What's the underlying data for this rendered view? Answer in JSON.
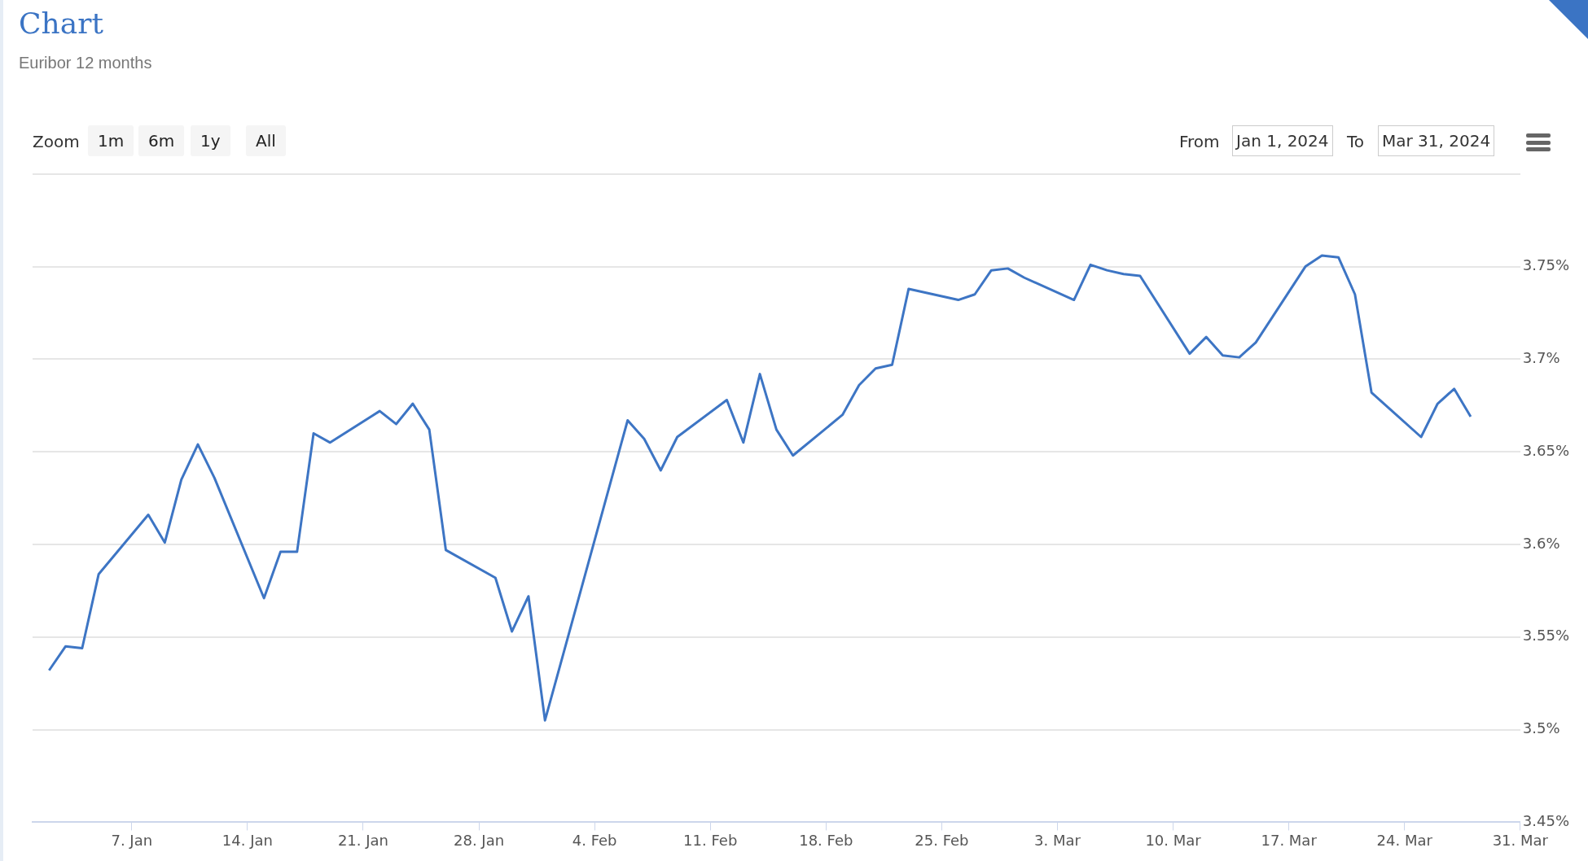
{
  "chart_data": {
    "type": "line",
    "title": "Chart",
    "subtitle": "Euribor 12 months",
    "annotations": [
      "Zoom",
      "1m",
      "6m",
      "1y",
      "All",
      "From",
      "Jan 1, 2024",
      "To",
      "Mar 31, 2024"
    ],
    "x": [
      "2024-01-02",
      "2024-01-03",
      "2024-01-04",
      "2024-01-05",
      "2024-01-08",
      "2024-01-09",
      "2024-01-10",
      "2024-01-11",
      "2024-01-12",
      "2024-01-15",
      "2024-01-16",
      "2024-01-17",
      "2024-01-18",
      "2024-01-19",
      "2024-01-22",
      "2024-01-23",
      "2024-01-24",
      "2024-01-25",
      "2024-01-26",
      "2024-01-29",
      "2024-01-30",
      "2024-01-31",
      "2024-02-01",
      "2024-02-06",
      "2024-02-07",
      "2024-02-08",
      "2024-02-09",
      "2024-02-12",
      "2024-02-13",
      "2024-02-14",
      "2024-02-15",
      "2024-02-16",
      "2024-02-19",
      "2024-02-20",
      "2024-02-21",
      "2024-02-22",
      "2024-02-23",
      "2024-02-26",
      "2024-02-27",
      "2024-02-28",
      "2024-02-29",
      "2024-03-01",
      "2024-03-04",
      "2024-03-05",
      "2024-03-06",
      "2024-03-07",
      "2024-03-08",
      "2024-03-11",
      "2024-03-12",
      "2024-03-13",
      "2024-03-14",
      "2024-03-15",
      "2024-03-18",
      "2024-03-19",
      "2024-03-20",
      "2024-03-21",
      "2024-03-22",
      "2024-03-25",
      "2024-03-26",
      "2024-03-27",
      "2024-03-28"
    ],
    "series": [
      {
        "color": "#3d75c4",
        "values": [
          3.532,
          3.545,
          3.544,
          3.584,
          3.616,
          3.601,
          3.635,
          3.654,
          3.636,
          3.571,
          3.596,
          3.596,
          3.66,
          3.655,
          3.672,
          3.665,
          3.676,
          3.662,
          3.597,
          3.582,
          3.553,
          3.572,
          3.505,
          3.667,
          3.657,
          3.64,
          3.658,
          3.678,
          3.655,
          3.692,
          3.662,
          3.648,
          3.67,
          3.686,
          3.695,
          3.697,
          3.738,
          3.732,
          3.735,
          3.748,
          3.749,
          3.744,
          3.732,
          3.751,
          3.748,
          3.746,
          3.745,
          3.703,
          3.712,
          3.702,
          3.701,
          3.709,
          3.75,
          3.756,
          3.755,
          3.735,
          3.682,
          3.658,
          3.676,
          3.684,
          3.669
        ]
      }
    ],
    "xlim": [
      "2024-01-01",
      "2024-03-31"
    ],
    "xticks": [
      {
        "value": "2024-01-07",
        "label": "7. Jan"
      },
      {
        "value": "2024-01-14",
        "label": "14. Jan"
      },
      {
        "value": "2024-01-21",
        "label": "21. Jan"
      },
      {
        "value": "2024-01-28",
        "label": "28. Jan"
      },
      {
        "value": "2024-02-04",
        "label": "4. Feb"
      },
      {
        "value": "2024-02-11",
        "label": "11. Feb"
      },
      {
        "value": "2024-02-18",
        "label": "18. Feb"
      },
      {
        "value": "2024-02-25",
        "label": "25. Feb"
      },
      {
        "value": "2024-03-03",
        "label": "3. Mar"
      },
      {
        "value": "2024-03-10",
        "label": "10. Mar"
      },
      {
        "value": "2024-03-17",
        "label": "17. Mar"
      },
      {
        "value": "2024-03-24",
        "label": "24. Mar"
      },
      {
        "value": "2024-03-31",
        "label": "31. Mar"
      }
    ],
    "ylim": [
      3.45,
      3.8
    ],
    "yticks": [
      {
        "value": 3.45,
        "label": "3.45%"
      },
      {
        "value": 3.5,
        "label": "3.5%"
      },
      {
        "value": 3.55,
        "label": "3.55%"
      },
      {
        "value": 3.6,
        "label": "3.6%"
      },
      {
        "value": 3.65,
        "label": "3.65%"
      },
      {
        "value": 3.7,
        "label": "3.7%"
      },
      {
        "value": 3.75,
        "label": "3.75%"
      },
      {
        "value": 3.8,
        "label": null
      }
    ],
    "grid": "y",
    "legend": false,
    "marker": "none",
    "line_style": "solid"
  }
}
